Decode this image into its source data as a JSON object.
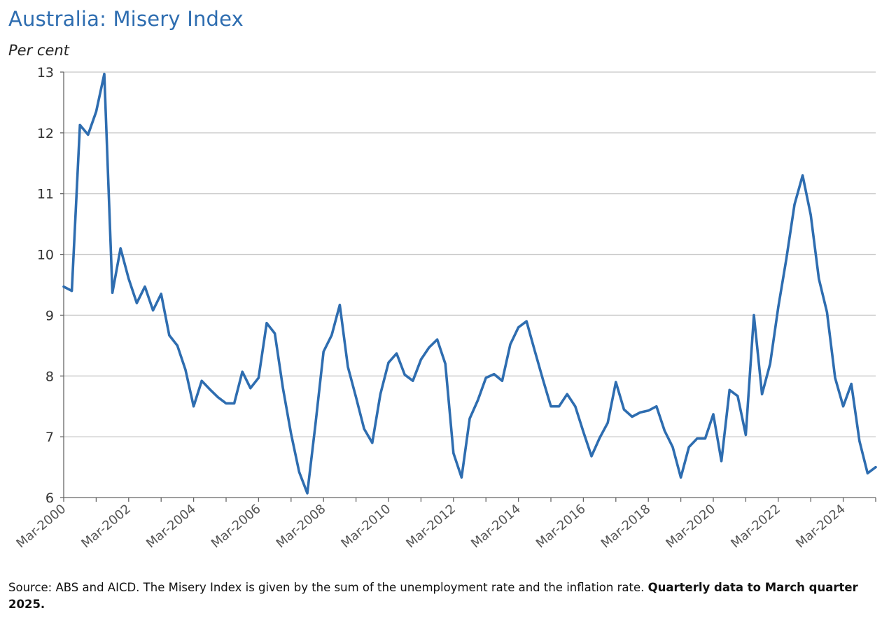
{
  "header": {
    "title": "Australia: Misery Index",
    "subtitle": "Per cent"
  },
  "footer": {
    "source_text": "Source: ABS and AICD.  The Misery Index is given by the sum of the unemployment rate and the inflation rate. ",
    "source_bold": "Quarterly data to March quarter 2025."
  },
  "colors": {
    "line": "#2e6db0",
    "grid": "#c8c8c8",
    "axis": "#666666",
    "title": "#2e6db0"
  },
  "chart_data": {
    "type": "line",
    "title": "Australia: Misery Index",
    "ylabel": "Per cent",
    "xlabel": "",
    "ylim": [
      6,
      13
    ],
    "yticks": [
      6,
      7,
      8,
      9,
      10,
      11,
      12,
      13
    ],
    "grid": true,
    "legend": "none",
    "x_start": "Mar-2000",
    "frequency": "quarterly",
    "xtick_labels": [
      "Mar-2000",
      "Mar-2002",
      "Mar-2004",
      "Mar-2006",
      "Mar-2008",
      "Mar-2010",
      "Mar-2012",
      "Mar-2014",
      "Mar-2016",
      "Mar-2018",
      "Mar-2020",
      "Mar-2022",
      "Mar-2024"
    ],
    "xtick_every": 8,
    "series": [
      {
        "name": "Misery Index",
        "values": [
          9.47,
          9.4,
          12.13,
          11.97,
          12.35,
          12.97,
          9.37,
          10.1,
          9.6,
          9.2,
          9.47,
          9.08,
          9.35,
          8.67,
          8.5,
          8.1,
          7.5,
          7.92,
          7.78,
          7.65,
          7.55,
          7.55,
          8.07,
          7.8,
          7.97,
          8.87,
          8.7,
          7.8,
          7.05,
          6.42,
          6.07,
          7.2,
          8.4,
          8.67,
          9.17,
          8.15,
          7.65,
          7.13,
          6.9,
          7.7,
          8.22,
          8.37,
          8.02,
          7.92,
          8.27,
          8.47,
          8.6,
          8.2,
          6.73,
          6.33,
          7.3,
          7.6,
          7.97,
          8.03,
          7.92,
          8.52,
          8.8,
          8.9,
          8.42,
          7.95,
          7.5,
          7.5,
          7.7,
          7.5,
          7.08,
          6.68,
          6.98,
          7.23,
          7.9,
          7.45,
          7.33,
          7.4,
          7.43,
          7.5,
          7.1,
          6.83,
          6.33,
          6.83,
          6.97,
          6.97,
          7.37,
          6.6,
          7.77,
          7.67,
          7.03,
          9.0,
          7.7,
          8.2,
          9.13,
          9.93,
          10.82,
          11.3,
          10.65,
          9.6,
          9.05,
          7.97,
          7.5,
          7.87,
          6.93,
          6.4,
          6.5
        ]
      }
    ]
  }
}
